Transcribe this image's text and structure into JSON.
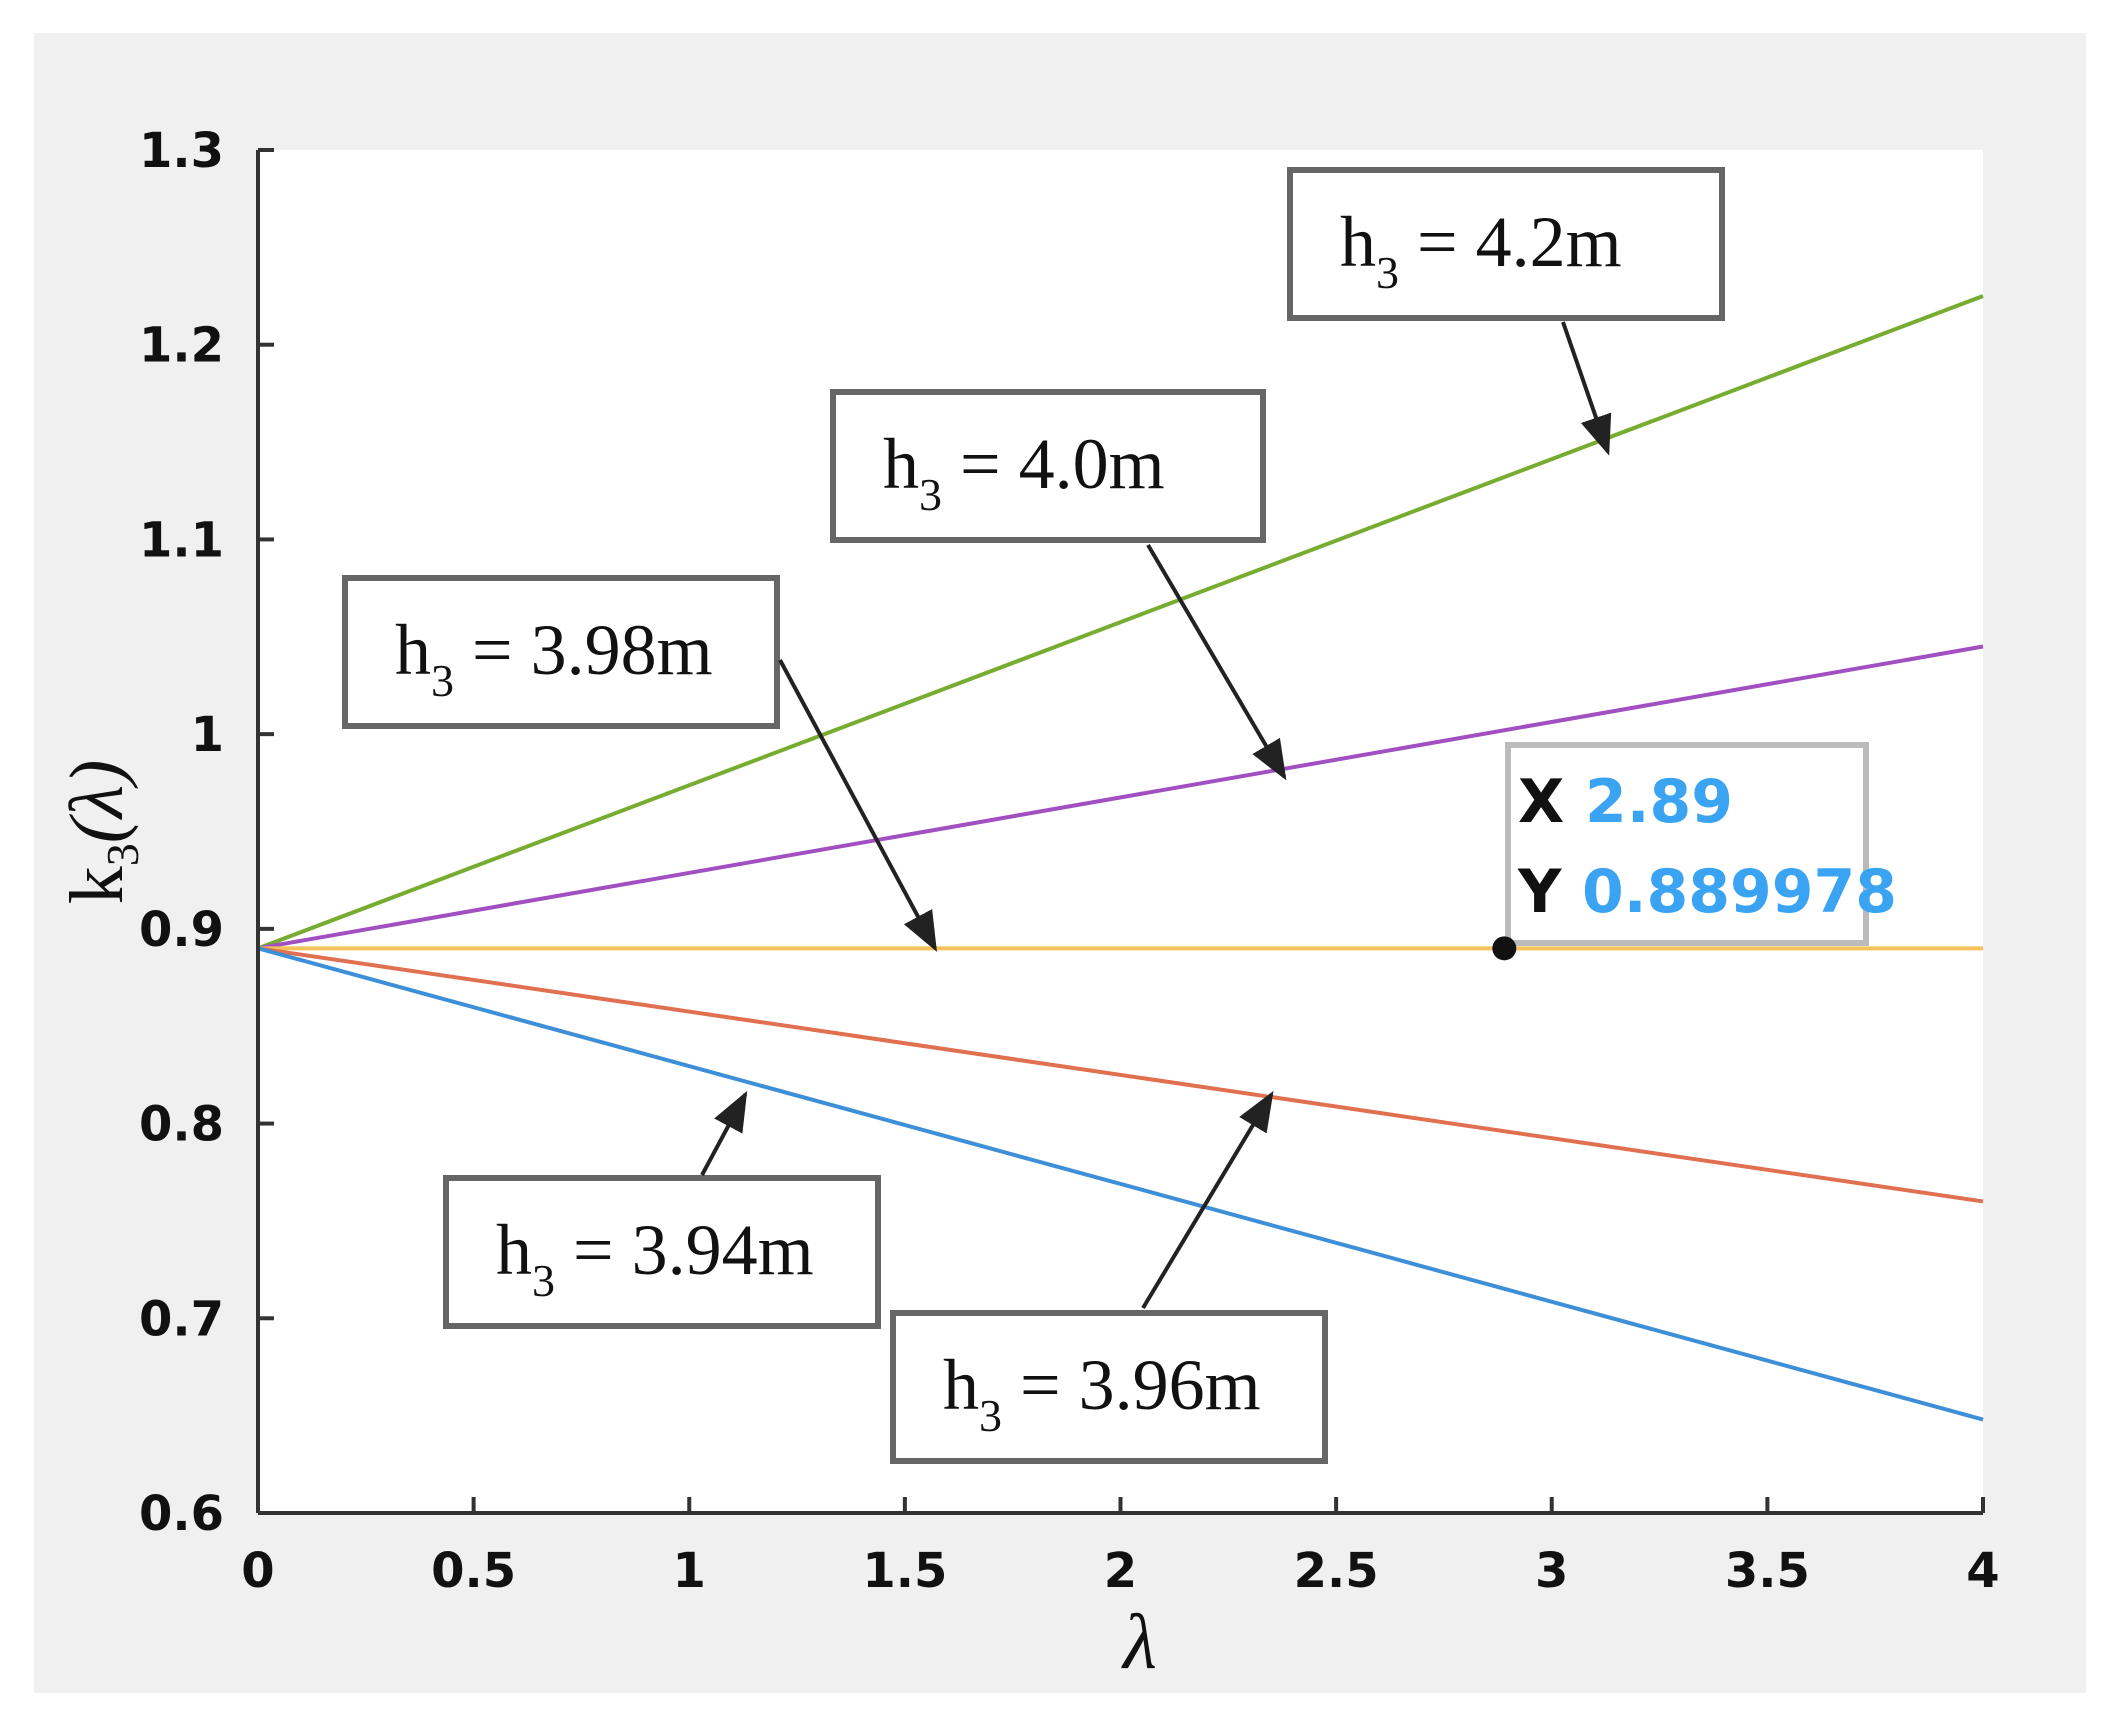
{
  "chart_data": {
    "type": "line",
    "title": "",
    "xlabel": "λ",
    "ylabel_main": "k",
    "ylabel_sub": "3",
    "ylabel_arg": "(λ)",
    "xlim": [
      0,
      4
    ],
    "ylim": [
      0.6,
      1.3
    ],
    "x_ticks": [
      "0",
      "0.5",
      "1",
      "1.5",
      "2",
      "2.5",
      "3",
      "3.5",
      "4"
    ],
    "y_ticks": [
      "0.6",
      "0.7",
      "0.8",
      "0.9",
      "1",
      "1.1",
      "1.2",
      "1.3"
    ],
    "grid": false,
    "series": [
      {
        "label_main": "h",
        "label_sub": "3",
        "label_rest": "= 4.2m",
        "color": "#77ac30",
        "x": [
          0,
          4
        ],
        "y": [
          0.89,
          1.225
        ],
        "arrow_to": [
          3.13,
          1.145
        ]
      },
      {
        "label_main": "h",
        "label_sub": "3",
        "label_rest": "= 4.0m",
        "color": "#a050c0",
        "x": [
          0,
          4
        ],
        "y": [
          0.89,
          1.045
        ],
        "arrow_to": [
          2.38,
          0.978
        ]
      },
      {
        "label_main": "h",
        "label_sub": "3",
        "label_rest": "= 3.98m",
        "color": "#f5c15a",
        "x": [
          0,
          4
        ],
        "y": [
          0.89,
          0.89
        ],
        "arrow_to": [
          1.57,
          0.89
        ]
      },
      {
        "label_main": "h",
        "label_sub": "3",
        "label_rest": "= 3.96m",
        "color": "#e07050",
        "x": [
          0,
          4
        ],
        "y": [
          0.89,
          0.76
        ],
        "arrow_to": [
          2.35,
          0.815
        ]
      },
      {
        "label_main": "h",
        "label_sub": "3",
        "label_rest": "= 3.94m",
        "color": "#3d8fd8",
        "x": [
          0,
          4
        ],
        "y": [
          0.89,
          0.648
        ],
        "arrow_to": [
          1.13,
          0.815
        ]
      }
    ],
    "datatip": {
      "x_key": "X",
      "x_value": "2.89",
      "y_key": "Y",
      "y_value": "0.889978",
      "px": 2.89,
      "py": 0.89
    }
  }
}
